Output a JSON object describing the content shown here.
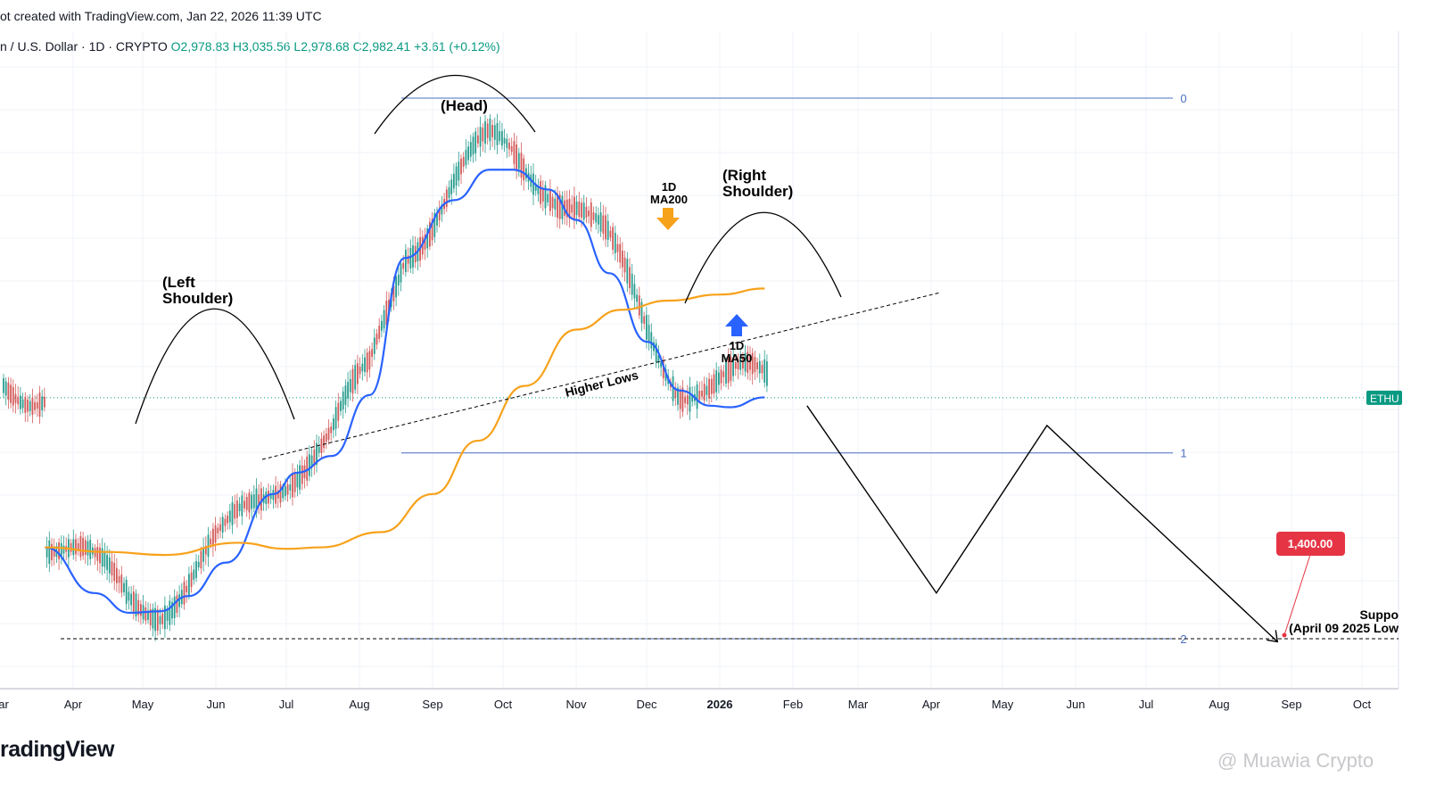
{
  "header": {
    "snapshot_text": "ot created with TradingView.com, Jan 22, 2026 11:39 UTC"
  },
  "symbol_bar": {
    "name": "n / U.S. Dollar · 1D · CRYPTO",
    "open": "O2,978.83",
    "high": "H3,035.56",
    "low": "L2,978.68",
    "close": "C2,982.41",
    "change": "+3.61 (+0.12%)"
  },
  "footer": {
    "logo": "radingView",
    "watermark": "@ Muawia Crypto"
  },
  "colors": {
    "ma50": "#2962ff",
    "ma200": "#f7a21b",
    "fib": "#4a6fc2",
    "up_candle": "#2a9d8f",
    "down_candle": "#d35a5a",
    "price_tag": "#089981",
    "target_tag": "#e53545"
  },
  "chart_data": {
    "type": "line",
    "title": "",
    "timeframe": "1D",
    "xlabel": "",
    "ylabel": "",
    "x_ticks": [
      "ar",
      "Apr",
      "May",
      "Jun",
      "Jul",
      "Aug",
      "Sep",
      "Oct",
      "Nov",
      "Dec",
      "2026",
      "Feb",
      "Mar",
      "Apr",
      "May",
      "Jun",
      "Jul",
      "Aug",
      "Sep",
      "Oct"
    ],
    "x_tick_emphasis": "2026",
    "grid": true,
    "price_label": "ETHU",
    "series": [
      {
        "name": "MA50",
        "color": "#2962ff",
        "x": [
          "2025-03-20",
          "2025-04-10",
          "2025-04-25",
          "2025-05-08",
          "2025-05-20",
          "2025-06-05",
          "2025-06-25",
          "2025-07-05",
          "2025-07-20",
          "2025-08-05",
          "2025-08-20",
          "2025-09-10",
          "2025-09-25",
          "2025-10-05",
          "2025-10-20",
          "2025-11-01",
          "2025-11-15",
          "2025-12-01",
          "2025-12-15",
          "2025-12-28",
          "2026-01-05",
          "2026-01-20"
        ],
        "values": [
          2000,
          1700,
          1570,
          1580,
          1680,
          1900,
          2350,
          2490,
          2600,
          3000,
          3900,
          4280,
          4480,
          4480,
          4350,
          4150,
          3800,
          3350,
          3030,
          2930,
          2920,
          2985
        ]
      },
      {
        "name": "MA200",
        "color": "#f7a21b",
        "x": [
          "2025-03-20",
          "2025-04-15",
          "2025-05-10",
          "2025-06-10",
          "2025-07-01",
          "2025-07-15",
          "2025-08-10",
          "2025-09-01",
          "2025-09-20",
          "2025-10-10",
          "2025-11-01",
          "2025-11-20",
          "2025-12-10",
          "2026-01-01",
          "2026-01-20"
        ],
        "values": [
          2000,
          1970,
          1950,
          2030,
          1990,
          2000,
          2100,
          2350,
          2700,
          3060,
          3430,
          3560,
          3620,
          3660,
          3700
        ]
      }
    ],
    "projection": {
      "x": [
        "2026-02-07",
        "2026-04-03",
        "2026-05-20",
        "2026-08-26"
      ],
      "values": [
        2930,
        1700,
        2800,
        1380
      ]
    },
    "target": {
      "label": "1,400.00",
      "value": 1400
    },
    "fib_levels": [
      {
        "label": "0",
        "value": 4950
      },
      {
        "label": "1",
        "value": 2620
      },
      {
        "label": "2",
        "value": 1400
      }
    ],
    "current_price": 2982.41,
    "annotations": [
      {
        "text": "(Left\nShoulder)"
      },
      {
        "text": "(Head)"
      },
      {
        "text": "(Right\nShoulder)"
      },
      {
        "text": "1D\nMA200"
      },
      {
        "text": "1D\nMA50"
      },
      {
        "text": "Higher Lows"
      },
      {
        "text": "Suppo\n(April 09 2025 Low"
      }
    ]
  }
}
